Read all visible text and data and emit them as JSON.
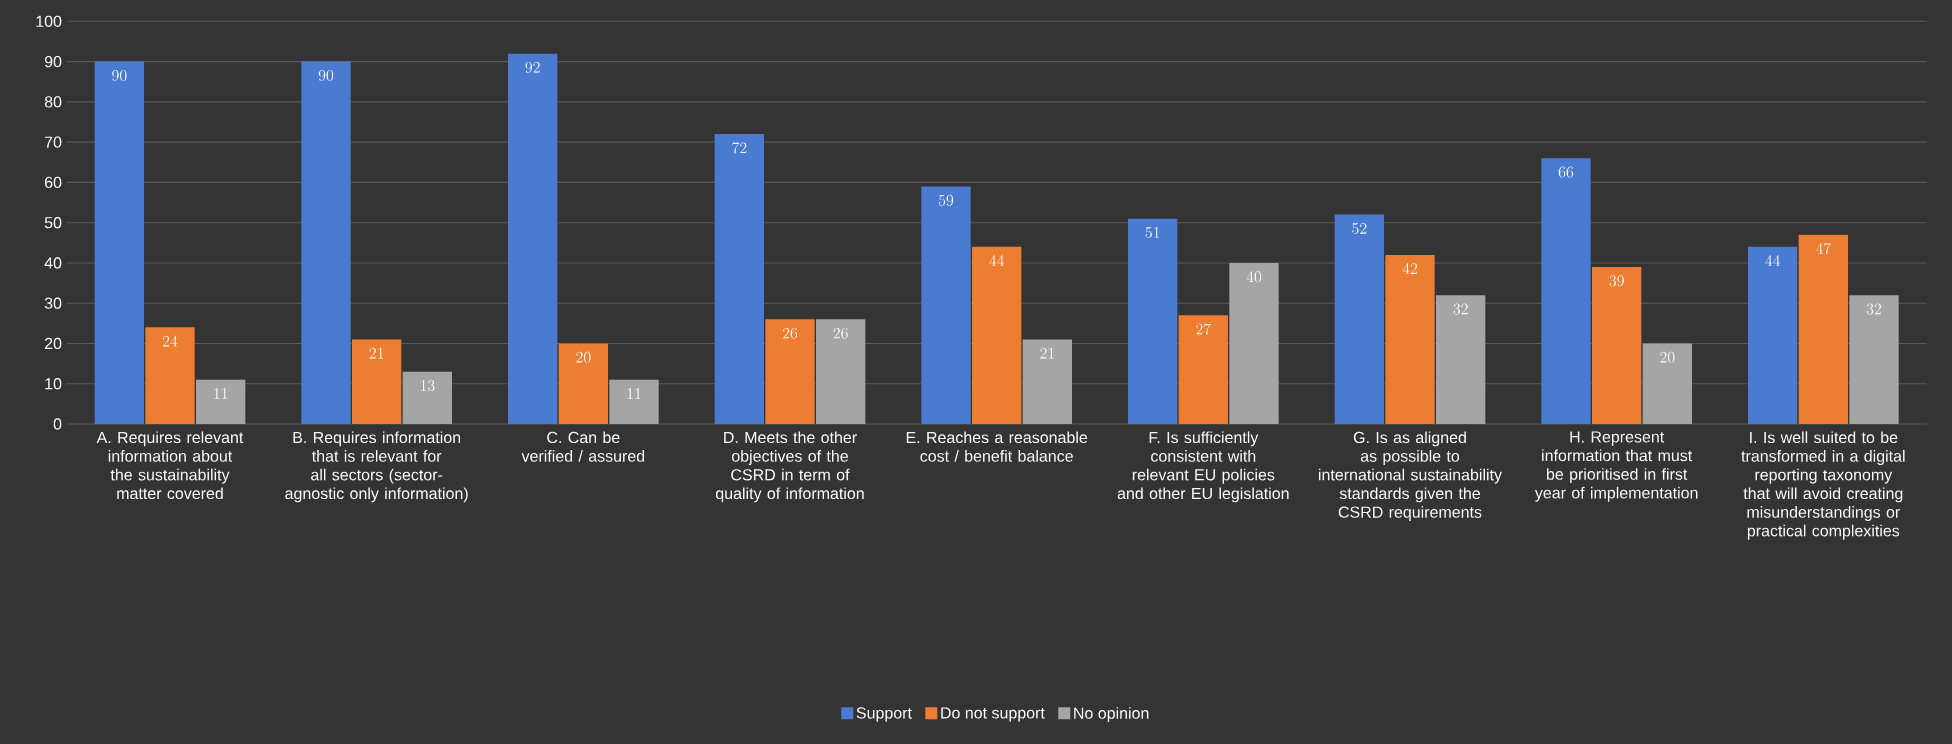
{
  "chart_data": {
    "type": "bar",
    "categories": [
      "A. Requires relevant information about the sustainability matter covered",
      "B. Requires information that is relevant for all sectors (sector-agnostic only information)",
      "C. Can be verified / assured",
      "D. Meets the other objectives of the CSRD in term of quality of information",
      "E. Reaches a reasonable cost / benefit balance",
      "F. Is sufficiently consistent with relevant EU policies and other EU legislation",
      "G. Is as aligned as possible to international sustainability standards given the CSRD requirements",
      "H. Represent information that must be prioritised in first year of implementation",
      "I. Is well suited to be transformed in a digital reporting taxonomy that will avoid creating misunderstandings or practical complexities"
    ],
    "series": [
      {
        "name": "Support",
        "color": "#4a7bd0",
        "values": [
          90,
          90,
          92,
          72,
          59,
          51,
          52,
          66,
          44
        ]
      },
      {
        "name": "Do not support",
        "color": "#ed7d31",
        "values": [
          24,
          21,
          20,
          26,
          44,
          27,
          42,
          39,
          47
        ]
      },
      {
        "name": "No opinion",
        "color": "#a5a5a5",
        "values": [
          11,
          13,
          11,
          26,
          21,
          40,
          32,
          20,
          32
        ]
      }
    ],
    "ylim": [
      0,
      100
    ],
    "yticks": [
      0,
      10,
      20,
      30,
      40,
      50,
      60,
      70,
      80,
      90,
      100
    ],
    "grid": "y",
    "legend": "bottom",
    "data_labels": true
  }
}
